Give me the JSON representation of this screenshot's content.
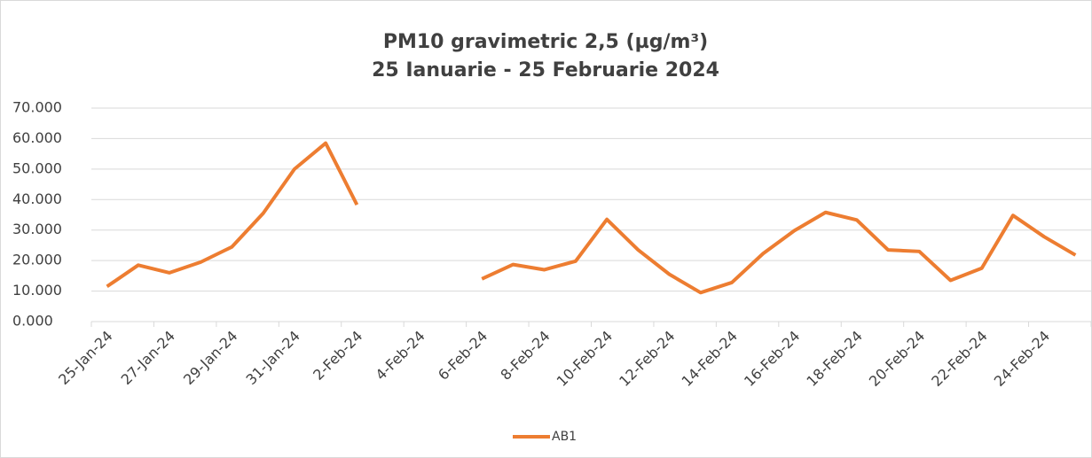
{
  "chart_data": {
    "type": "line",
    "title": "PM10 gravimetric 2,5 (µg/m³)",
    "subtitle": "25 Ianuarie - 25 Februarie 2024",
    "categories": [
      "25-Jan-24",
      null,
      "27-Jan-24",
      null,
      "29-Jan-24",
      null,
      "31-Jan-24",
      null,
      "2-Feb-24",
      null,
      "4-Feb-24",
      null,
      "6-Feb-24",
      null,
      "8-Feb-24",
      null,
      "10-Feb-24",
      null,
      "12-Feb-24",
      null,
      "14-Feb-24",
      null,
      "16-Feb-24",
      null,
      "18-Feb-24",
      null,
      "20-Feb-24",
      null,
      "22-Feb-24",
      null,
      "24-Feb-24",
      null
    ],
    "series": [
      {
        "name": "AB1",
        "color": "#ed7d31",
        "values": [
          11.5,
          18.5,
          16,
          19.5,
          24.5,
          35.5,
          50,
          58.5,
          38.3,
          null,
          null,
          null,
          14,
          18.7,
          17,
          19.8,
          33.5,
          23.5,
          15.5,
          9.5,
          12.8,
          22.3,
          29.8,
          35.8,
          33.3,
          23.5,
          23,
          13.5,
          17.5,
          34.8,
          27.8,
          21.8
        ]
      }
    ],
    "ylim": [
      0,
      70
    ],
    "yticks": [
      {
        "value": 0,
        "label": "0.000"
      },
      {
        "value": 10,
        "label": "10.000"
      },
      {
        "value": 20,
        "label": "20.000"
      },
      {
        "value": 30,
        "label": "30.000"
      },
      {
        "value": 40,
        "label": "40.000"
      },
      {
        "value": 50,
        "label": "50.000"
      },
      {
        "value": 60,
        "label": "60.000"
      },
      {
        "value": 70,
        "label": "70.000"
      }
    ],
    "grid": true,
    "legend": "bottom"
  }
}
